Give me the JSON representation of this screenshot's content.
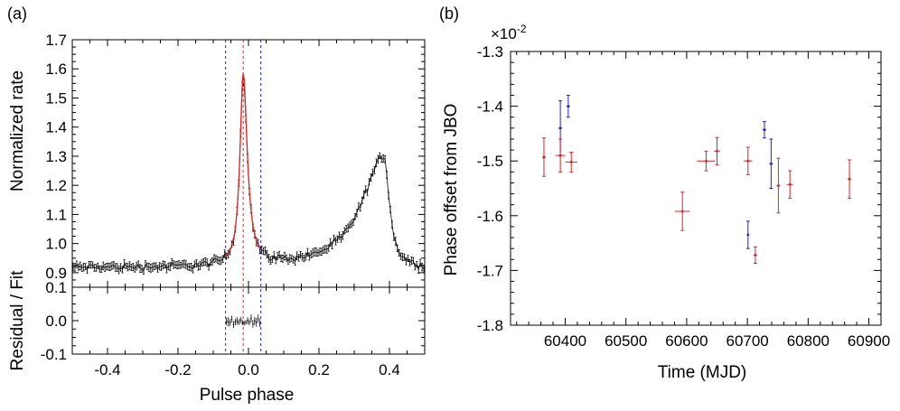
{
  "chart_data": [
    {
      "id": "a",
      "panel_label": "(a)",
      "type": "line",
      "title": "",
      "xlabel": "Pulse phase",
      "ylabel": "Normalized rate",
      "residual_ylabel": "Residual / Fit",
      "xlim": [
        -0.5,
        0.5
      ],
      "ylim": [
        0.85,
        1.7
      ],
      "residual_ylim": [
        -0.1,
        0.1
      ],
      "x_ticks": [
        -0.4,
        -0.2,
        0.0,
        0.2,
        0.4
      ],
      "x_tick_labels": [
        "-0.4",
        "-0.2",
        "0.0",
        "0.2",
        "0.4"
      ],
      "y_ticks": [
        0.9,
        1.0,
        1.1,
        1.2,
        1.3,
        1.4,
        1.5,
        1.6,
        1.7
      ],
      "y_tick_labels": [
        "0.9",
        "1.0",
        "1.1",
        "1.2",
        "1.3",
        "1.4",
        "1.5",
        "1.6",
        "1.7"
      ],
      "residual_y_ticks": [
        -0.1,
        0.0,
        0.1
      ],
      "residual_y_tick_labels": [
        "-0.1",
        "0.0",
        "0.1"
      ],
      "vertical_lines": [
        {
          "x": -0.065,
          "color": "#2222cc",
          "style": "dashed"
        },
        {
          "x": -0.015,
          "color": "#dd2222",
          "style": "dashed"
        },
        {
          "x": 0.035,
          "color": "#2222cc",
          "style": "dashed"
        }
      ],
      "profile_model": {
        "baseline": 0.915,
        "peaks": [
          {
            "center": -0.015,
            "amplitude": 0.655,
            "width_left": 0.011,
            "width_right": 0.014
          },
          {
            "center": 0.385,
            "amplitude": 0.385,
            "width_left": 0.075,
            "width_right": 0.018
          }
        ],
        "n_bins": 200,
        "error": 0.012
      },
      "fit_range": [
        -0.065,
        0.035
      ],
      "series": [
        {
          "name": "profile",
          "color": "#000000"
        },
        {
          "name": "fit",
          "color": "#dd2222"
        }
      ]
    },
    {
      "id": "b",
      "panel_label": "(b)",
      "type": "scatter",
      "title": "",
      "xlabel": "Time (MJD)",
      "ylabel": "Phase offset from JBO",
      "y_multiplier": "×10",
      "y_multiplier_exp": "-2",
      "xlim": [
        60310,
        60920
      ],
      "ylim": [
        -1.8,
        -1.3
      ],
      "x_ticks": [
        60400,
        60500,
        60600,
        60700,
        60800,
        60900
      ],
      "x_tick_labels": [
        "60400",
        "60500",
        "60600",
        "60700",
        "60800",
        "60900"
      ],
      "y_ticks": [
        -1.8,
        -1.7,
        -1.6,
        -1.5,
        -1.4,
        -1.3
      ],
      "y_tick_labels": [
        "-1.8",
        "-1.7",
        "-1.6",
        "-1.5",
        "-1.4",
        "-1.3"
      ],
      "series": [
        {
          "name": "blue",
          "color": "#2222cc",
          "points": [
            {
              "x": 60392,
              "y": -1.44,
              "xerr": 3,
              "yerr": 0.05
            },
            {
              "x": 60405,
              "y": -1.4,
              "xerr": 3,
              "yerr": 0.02
            },
            {
              "x": 60701,
              "y": -1.635,
              "xerr": 2,
              "yerr": 0.025
            },
            {
              "x": 60728,
              "y": -1.443,
              "xerr": 3,
              "yerr": 0.015
            },
            {
              "x": 60739,
              "y": -1.505,
              "xerr": 3,
              "yerr": 0.045
            }
          ]
        },
        {
          "name": "red",
          "color": "#dd2222",
          "points": [
            {
              "x": 60365,
              "y": -1.493,
              "xerr": 3,
              "yerr": 0.035
            },
            {
              "x": 60392,
              "y": -1.49,
              "xerr": 8,
              "yerr": 0.03
            },
            {
              "x": 60410,
              "y": -1.502,
              "xerr": 10,
              "yerr": 0.018
            },
            {
              "x": 60593,
              "y": -1.592,
              "xerr": 12,
              "yerr": 0.035
            },
            {
              "x": 60632,
              "y": -1.5,
              "xerr": 15,
              "yerr": 0.018
            },
            {
              "x": 60650,
              "y": -1.482,
              "xerr": 5,
              "yerr": 0.025
            },
            {
              "x": 60701,
              "y": -1.5,
              "xerr": 7,
              "yerr": 0.025
            },
            {
              "x": 60713,
              "y": -1.672,
              "xerr": 3,
              "yerr": 0.015
            },
            {
              "x": 60751,
              "y": -1.545,
              "xerr": 3,
              "yerr": 0.05
            },
            {
              "x": 60770,
              "y": -1.543,
              "xerr": 5,
              "yerr": 0.025
            },
            {
              "x": 60868,
              "y": -1.533,
              "xerr": 3,
              "yerr": 0.035
            }
          ]
        }
      ]
    }
  ]
}
